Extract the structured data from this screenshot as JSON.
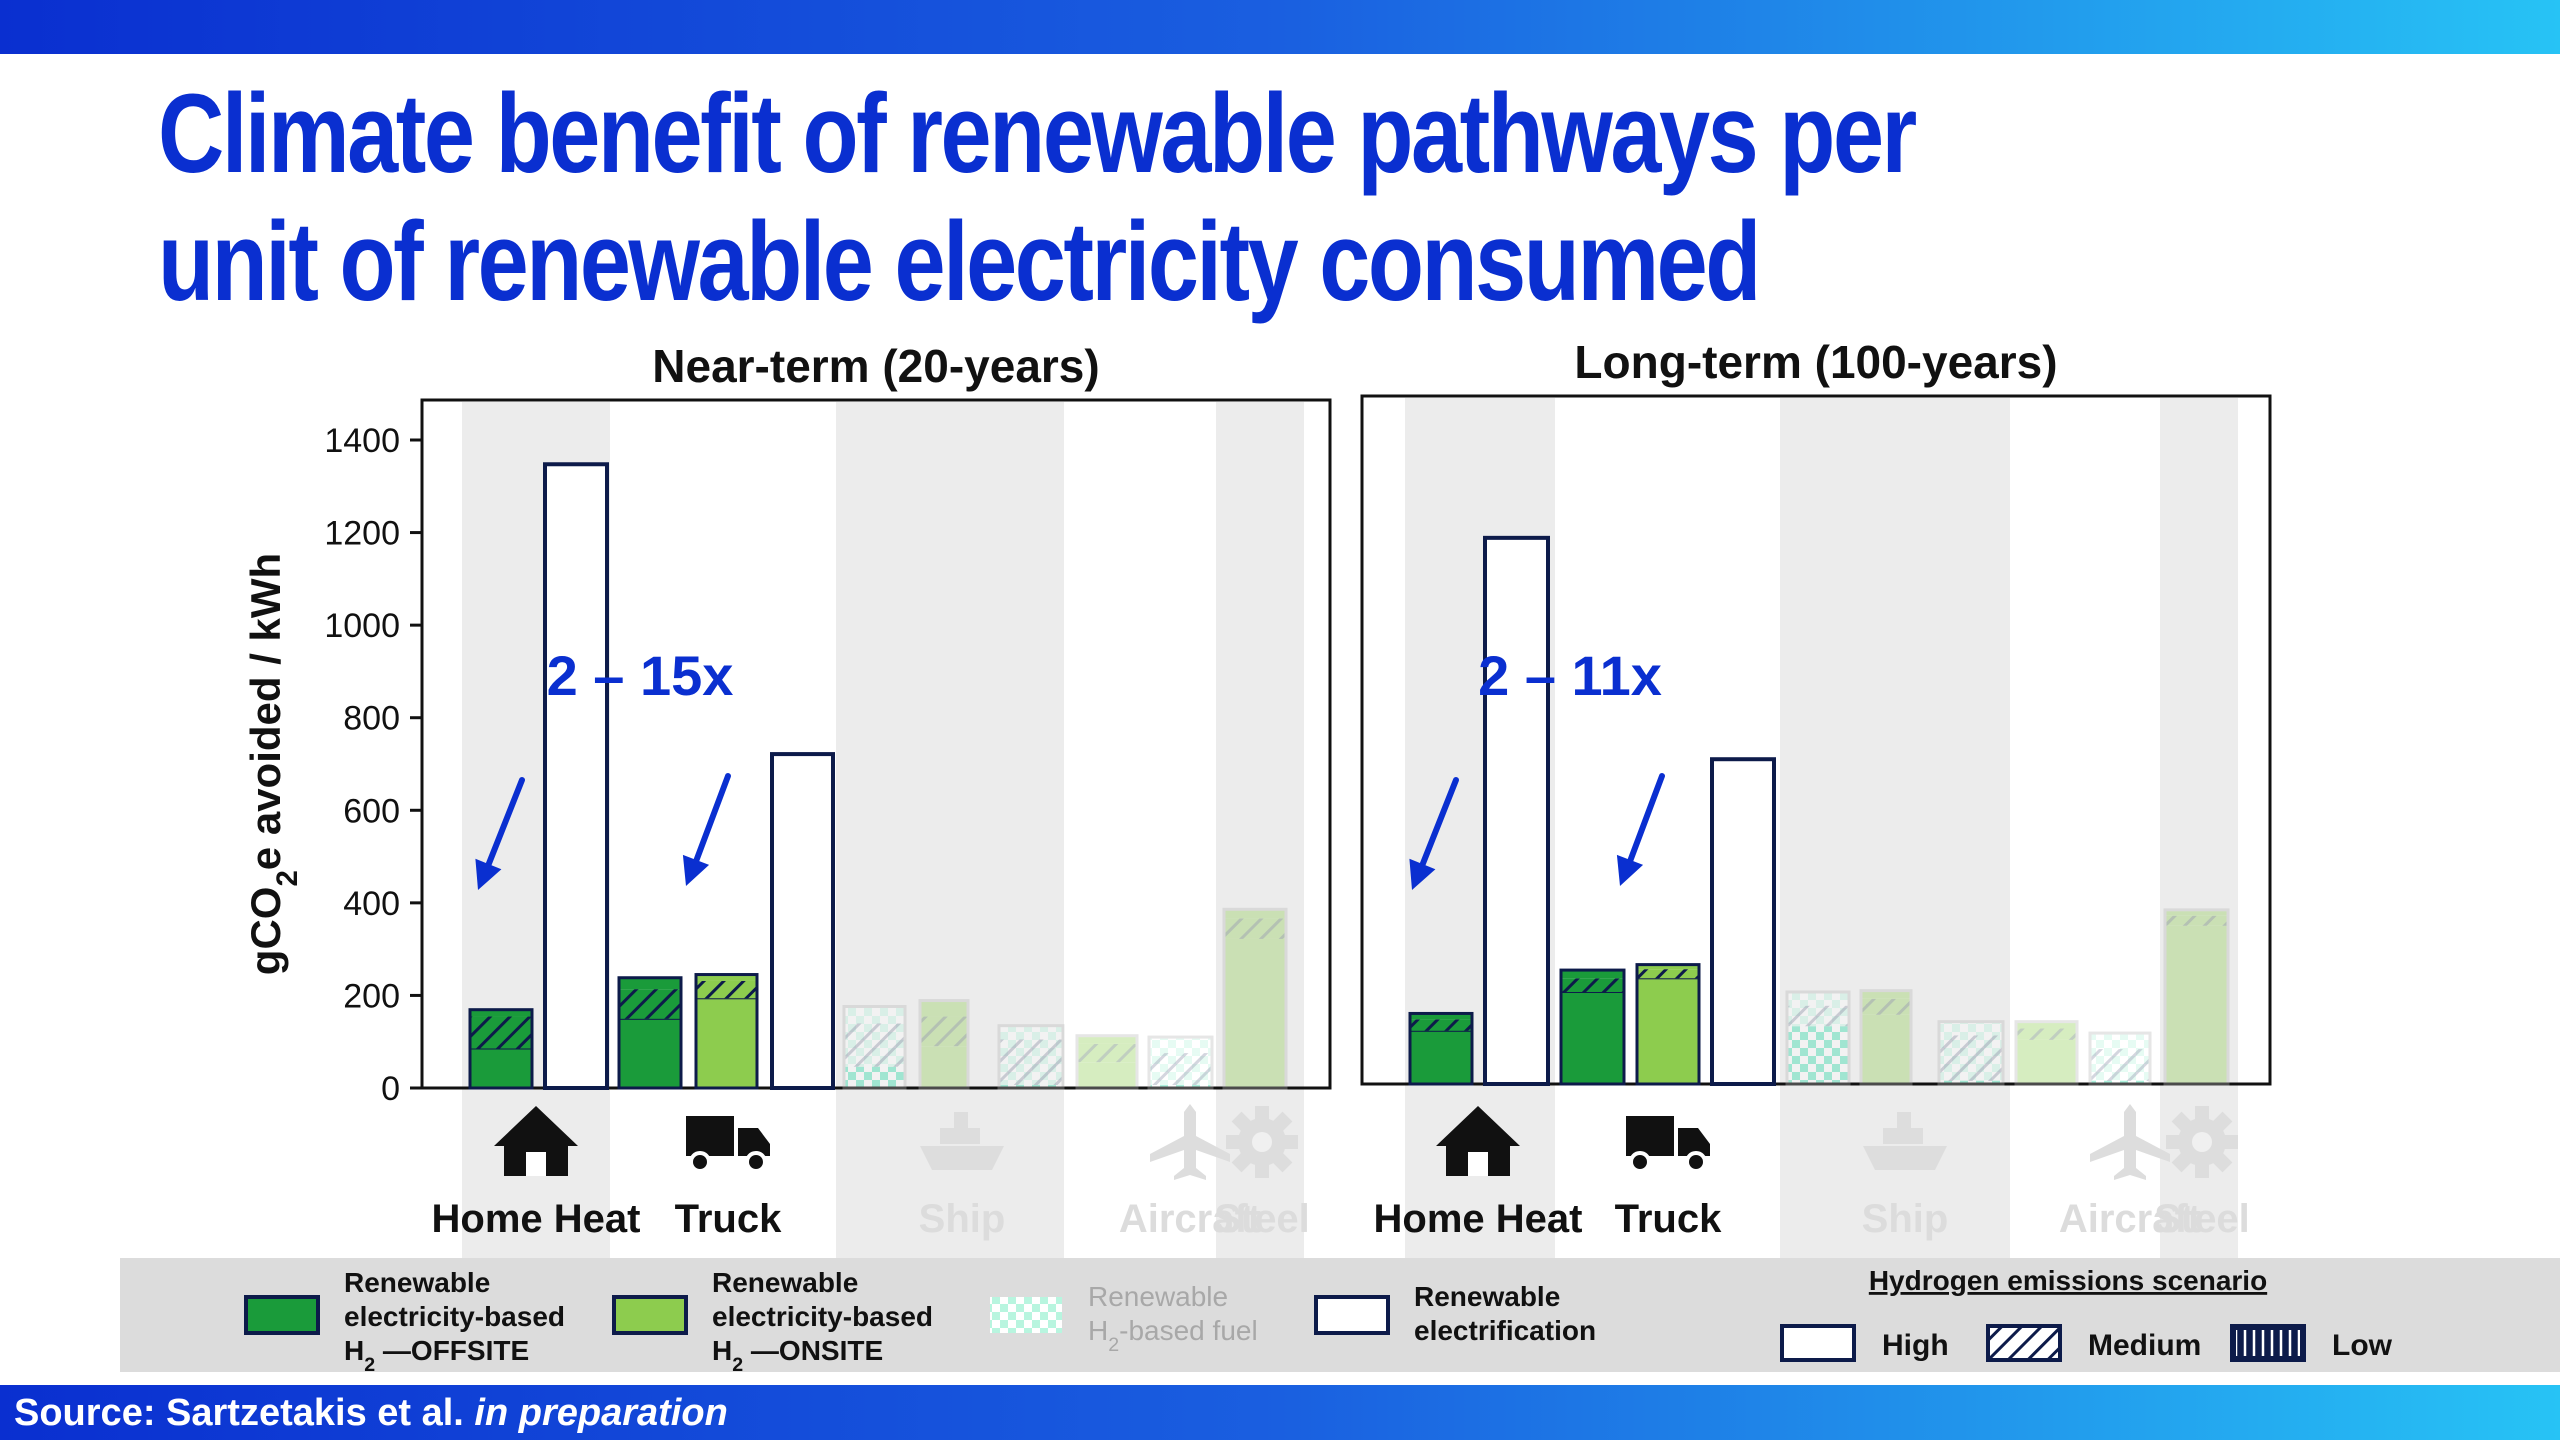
{
  "title": "Climate benefit of renewable pathways per unit of renewable electricity consumed",
  "source": {
    "prefix": "Source: Sartzetakis et al.",
    "emphasis": "in preparation"
  },
  "colors": {
    "offsite": "#1a9b3a",
    "onsite": "#8dcc4e",
    "h2fuel": "#7ff0c8",
    "electrification": "#ffffff",
    "outline": "#0d1b4a",
    "arrow": "#0a2fd0",
    "panelShade": "#ececec",
    "legendBg": "#dcdcdc"
  },
  "chart_data": {
    "type": "bar",
    "ylabel": "gCO2e avoided / kWh",
    "ylim": [
      0,
      1400
    ],
    "yticks": [
      0,
      200,
      400,
      600,
      800,
      1000,
      1200,
      1400
    ],
    "categories": [
      "Home Heat",
      "Truck",
      "Ship",
      "Aircraft",
      "Steel"
    ],
    "faded_categories": [
      "Ship",
      "Aircraft",
      "Steel"
    ],
    "panels": [
      {
        "title": "Near-term (20-years)",
        "annotation": "2 – 15x",
        "bars": [
          {
            "category": "Home Heat",
            "pathway": "offsite",
            "low": 80,
            "medium": 150,
            "high": 165
          },
          {
            "category": "Home Heat",
            "pathway": "electrification",
            "value": 1360
          },
          {
            "category": "Truck",
            "pathway": "offsite",
            "low": 145,
            "medium": 210,
            "high": 235
          },
          {
            "category": "Truck",
            "pathway": "onsite",
            "low": 190,
            "medium": 228,
            "high": 242
          },
          {
            "category": "Truck",
            "pathway": "electrification",
            "value": 725
          },
          {
            "category": "Ship",
            "pathway": "h2fuel",
            "low": 40,
            "medium": 135,
            "high": 172
          },
          {
            "category": "Ship",
            "pathway": "onsite",
            "low": 85,
            "medium": 150,
            "high": 185
          },
          {
            "category": "Ship",
            "pathway": "h2fuel",
            "low": 0,
            "medium": 100,
            "high": 130
          },
          {
            "category": "Aircraft",
            "pathway": "onsite",
            "low": 50,
            "medium": 90,
            "high": 108
          },
          {
            "category": "Aircraft",
            "pathway": "h2fuel",
            "low": 0,
            "medium": 70,
            "high": 105
          },
          {
            "category": "Steel",
            "pathway": "onsite",
            "low": 320,
            "medium": 365,
            "high": 385
          }
        ]
      },
      {
        "title": "Long-term (100-years)",
        "annotation": "2 – 11x",
        "bars": [
          {
            "category": "Home Heat",
            "pathway": "offsite",
            "low": 110,
            "medium": 135,
            "high": 148
          },
          {
            "category": "Home Heat",
            "pathway": "electrification",
            "value": 1190
          },
          {
            "category": "Truck",
            "pathway": "offsite",
            "low": 195,
            "medium": 225,
            "high": 243
          },
          {
            "category": "Truck",
            "pathway": "onsite",
            "low": 225,
            "medium": 245,
            "high": 255
          },
          {
            "category": "Truck",
            "pathway": "electrification",
            "value": 705
          },
          {
            "category": "Ship",
            "pathway": "h2fuel",
            "low": 120,
            "medium": 165,
            "high": 195
          },
          {
            "category": "Ship",
            "pathway": "onsite",
            "low": 145,
            "medium": 180,
            "high": 198
          },
          {
            "category": "Ship",
            "pathway": "h2fuel",
            "low": 0,
            "medium": 100,
            "high": 130
          },
          {
            "category": "Aircraft",
            "pathway": "onsite",
            "low": 90,
            "medium": 115,
            "high": 130
          },
          {
            "category": "Aircraft",
            "pathway": "h2fuel",
            "low": 0,
            "medium": 70,
            "high": 105
          },
          {
            "category": "Steel",
            "pathway": "onsite",
            "low": 340,
            "medium": 362,
            "high": 375
          }
        ]
      }
    ],
    "legend": {
      "pathways": [
        {
          "key": "offsite",
          "line1": "Renewable",
          "line2": "electricity-based",
          "line3": "H2 —OFFSITE"
        },
        {
          "key": "onsite",
          "line1": "Renewable",
          "line2": "electricity-based",
          "line3": "H2 —ONSITE"
        },
        {
          "key": "h2fuel",
          "line1": "Renewable",
          "line2": "H2-based fuel",
          "line3": ""
        },
        {
          "key": "electrification",
          "line1": "Renewable",
          "line2": "electrification",
          "line3": ""
        }
      ],
      "scenario_title": "Hydrogen emissions scenario",
      "scenarios": [
        "High",
        "Medium",
        "Low"
      ]
    },
    "icons": [
      "house-icon",
      "truck-icon",
      "ship-icon",
      "airplane-icon",
      "gear-icon"
    ]
  }
}
